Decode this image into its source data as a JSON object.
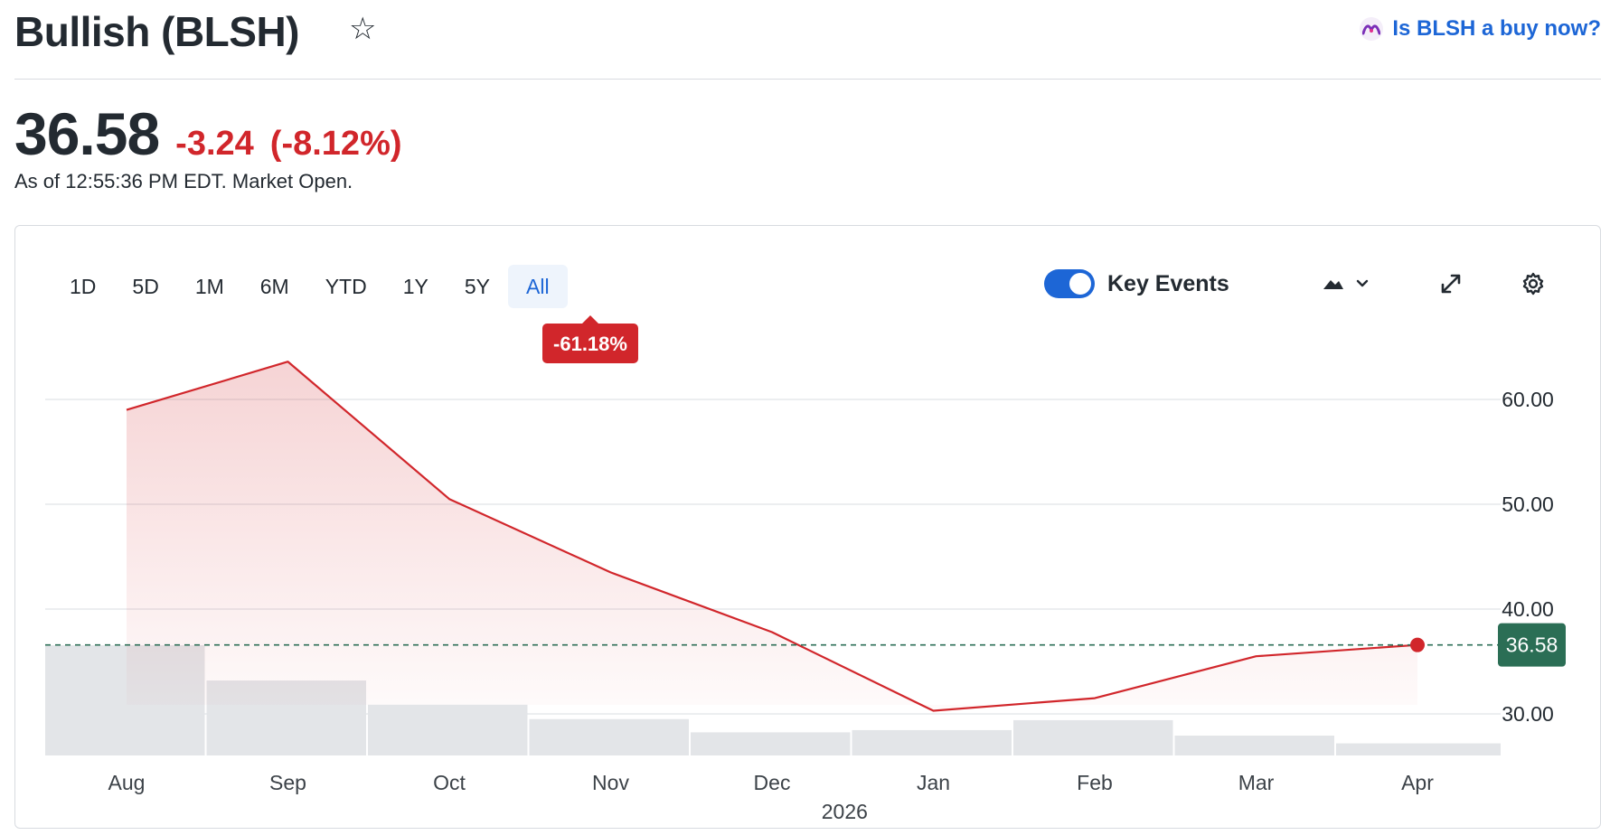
{
  "header": {
    "title": "Bullish (BLSH)",
    "buy_link_label": "Is BLSH a buy now?"
  },
  "quote": {
    "price": "36.58",
    "change": "-3.24",
    "change_percent": "(-8.12%)",
    "as_of": "As of 12:55:36 PM EDT. Market Open."
  },
  "range_tabs": [
    {
      "label": "1D",
      "active": false
    },
    {
      "label": "5D",
      "active": false
    },
    {
      "label": "1M",
      "active": false
    },
    {
      "label": "6M",
      "active": false
    },
    {
      "label": "YTD",
      "active": false
    },
    {
      "label": "1Y",
      "active": false
    },
    {
      "label": "5Y",
      "active": false
    },
    {
      "label": "All",
      "active": true
    }
  ],
  "key_events": {
    "label": "Key Events",
    "enabled": true
  },
  "colors": {
    "down": "#d1262b",
    "current_badge": "#2b6e55",
    "accent": "#1d66d6",
    "volume": "#e3e5e8",
    "grid": "#e0e3e7"
  },
  "chart_data": {
    "type": "line",
    "period_change_label": "-61.18%",
    "x": [
      "Aug",
      "Sep",
      "Oct",
      "Nov",
      "Dec",
      "Jan",
      "Feb",
      "Mar",
      "Apr"
    ],
    "x_sublabel": "2026",
    "series": [
      {
        "values": [
          59.0,
          63.6,
          50.5,
          43.5,
          37.8,
          30.3,
          31.5,
          35.5,
          36.58
        ]
      }
    ],
    "volume_relative": [
      1.0,
      0.68,
      0.46,
      0.33,
      0.21,
      0.23,
      0.32,
      0.18,
      0.11
    ],
    "current_value_label": "36.58",
    "current_value": 36.58,
    "y_ticks": [
      "60.00",
      "50.00",
      "40.00",
      "30.00"
    ],
    "ylim": [
      26,
      66
    ],
    "grid": true
  }
}
